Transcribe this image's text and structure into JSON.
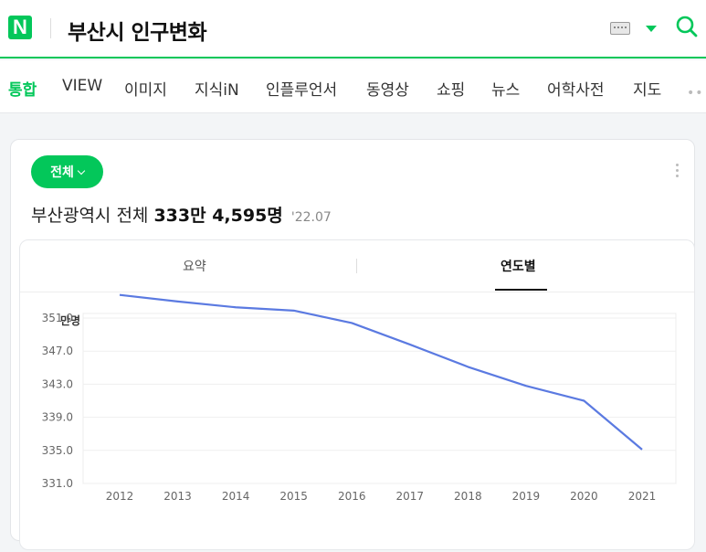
{
  "header": {
    "logo": "N",
    "query": "부산시 인구변화"
  },
  "tabs": [
    "통합",
    "VIEW",
    "이미지",
    "지식iN",
    "인플루언서",
    "동영상",
    "쇼핑",
    "뉴스",
    "어학사전",
    "지도"
  ],
  "tab_more": "••",
  "card": {
    "filter_label": "전체",
    "headline_prefix": "부산광역시 전체",
    "headline_value": "333만 4,595명",
    "headline_date": "'22.07",
    "subtabs": [
      "요약",
      "연도별"
    ]
  },
  "chart_data": {
    "type": "line",
    "ylabel": "만명",
    "x": [
      "2012",
      "2013",
      "2014",
      "2015",
      "2016",
      "2017",
      "2018",
      "2019",
      "2020",
      "2021"
    ],
    "y_ticks": [
      "351.0",
      "347.0",
      "343.0",
      "339.0",
      "335.0",
      "331.0"
    ],
    "ylim": [
      331,
      351
    ],
    "series": [
      {
        "values": [
          353.8,
          353.0,
          352.3,
          351.9,
          350.4,
          347.8,
          345.1,
          342.8,
          341.0,
          335.1
        ]
      }
    ],
    "grid": true,
    "color": "#5b7ae1"
  }
}
